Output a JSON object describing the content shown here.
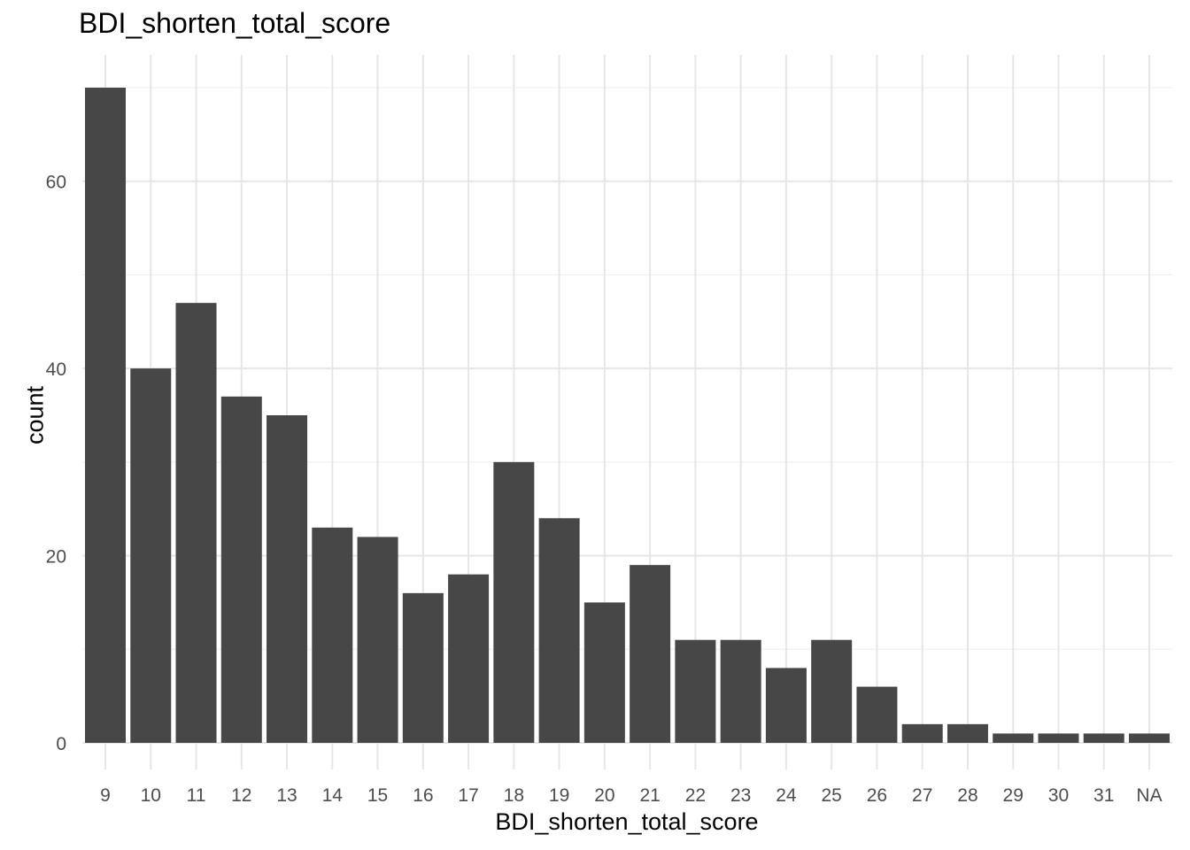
{
  "chart_data": {
    "type": "bar",
    "title": "BDI_shorten_total_score",
    "xlabel": "BDI_shorten_total_score",
    "ylabel": "count",
    "categories": [
      "9",
      "10",
      "11",
      "12",
      "13",
      "14",
      "15",
      "16",
      "17",
      "18",
      "19",
      "20",
      "21",
      "22",
      "23",
      "24",
      "25",
      "26",
      "27",
      "28",
      "29",
      "30",
      "31",
      "NA"
    ],
    "values": [
      70,
      40,
      47,
      37,
      35,
      23,
      22,
      16,
      18,
      30,
      24,
      15,
      19,
      11,
      11,
      8,
      11,
      6,
      2,
      2,
      1,
      1,
      1,
      1
    ],
    "ylim": [
      0,
      70
    ],
    "yticks": [
      0,
      20,
      40,
      60
    ],
    "grid": true,
    "colors": {
      "bar": "#474747",
      "grid_major": "#e6e6e6",
      "grid_minor": "#f0f0f0",
      "tick_label": "#4d4d4d"
    }
  }
}
